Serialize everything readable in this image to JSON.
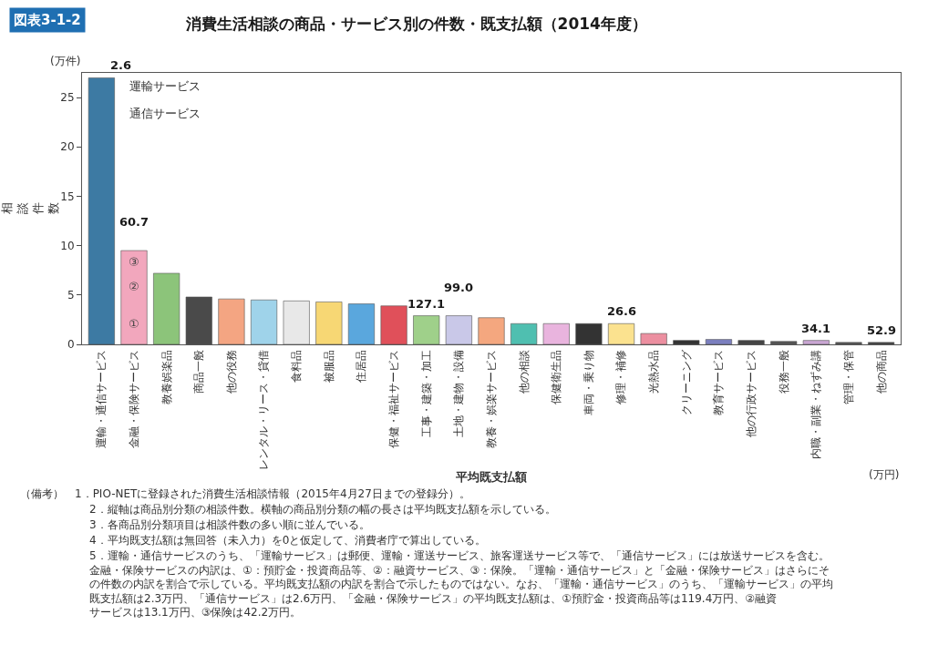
{
  "chart_data": {
    "type": "bar",
    "subtitle": "図表3-1-2",
    "title": "消費生活相談の商品・サービス別の件数・既支払額（2014年度）",
    "ylabel": "相談件数",
    "xlabel": "平均既支払額",
    "categories": [
      "運輸・通信サービス",
      "金融・保険サービス",
      "教養娯楽品",
      "商品一般",
      "他の役務",
      "レンタル・リース・貸借",
      "食料品",
      "被服品",
      "住居品",
      "保健・福祉サービス",
      "工事・建築・加工",
      "土地・建物・設備",
      "教養・娯楽サービス",
      "他の相談",
      "保健衛生品",
      "車両・乗り物",
      "修理・補修",
      "光熱水品",
      "クリーニング",
      "教育サービス",
      "他の行政サービス",
      "役務一般",
      "内職・副業・ねずみ講",
      "管理・保管",
      "他の商品"
    ],
    "values": [
      27.0,
      9.5,
      7.2,
      4.8,
      4.6,
      4.5,
      4.4,
      4.3,
      4.1,
      3.9,
      2.9,
      2.9,
      2.7,
      2.1,
      2.1,
      2.1,
      2.1,
      1.1,
      0.4,
      0.5,
      0.4,
      0.3,
      0.4,
      0.2,
      0.2
    ],
    "colors": [
      "#3d7aa3",
      "#f2a7bd",
      "#8cc47a",
      "#4a4a4a",
      "#f4a582",
      "#9fd3ea",
      "#e8e8e8",
      "#f7d774",
      "#5aa7dd",
      "#e0505a",
      "#9fd08a",
      "#c9c8e8",
      "#f4a77f",
      "#4fbfb0",
      "#e9b4de",
      "#333333",
      "#fbe28f",
      "#ec8fa0",
      "#333333",
      "#7b7fbf",
      "#444444",
      "#555555",
      "#c9a6d3",
      "#555555",
      "#444444"
    ],
    "ylim": [
      0,
      27.5
    ],
    "yticks": [
      0,
      5,
      10,
      15,
      20,
      25
    ],
    "annotations": [
      "(万件)",
      "(万円)",
      {
        "text": "2.6",
        "x": "運輸・通信サービス",
        "y": 27.0
      },
      {
        "text": "60.7",
        "x": "金融・保険サービス",
        "y": 9.5
      },
      {
        "text": "127.1",
        "x": "工事・建築・加工",
        "y": 2.9
      },
      {
        "text": "99.0",
        "x": "土地・建物・設備",
        "y": 2.9
      },
      {
        "text": "26.6",
        "x": "修理・補修",
        "y": 2.1
      },
      {
        "text": "34.1",
        "x": "内職・副業・ねずみ講",
        "y": 0.4
      },
      {
        "text": "52.9",
        "x": "他の商品",
        "y": 0.2
      },
      "運輸サービス",
      "通信サービス",
      "①",
      "②",
      "③",
      "（備考）　1．PIO-NETに登録された消費生活相談情報（2015年4月27日までの登録分）。",
      "2．縦軸は商品別分類の相談件数。横軸の商品別分類の幅の長さは平均既支払額を示している。",
      "3．各商品別分類項目は相談件数の多い順に並んでいる。",
      "4．平均既支払額は無回答（未入力）を0と仮定して、消費者庁で算出している。",
      "5．運輸・通信サービスのうち、「運輸サービス」は郵便、運輸・運送サービス、旅客運送サービス等で、「通信サービス」には放送サービスを含む。金融・保険サービスの内訳は、①：預貯金・投資商品等、②：融資サービス、③：保険。「運輸・通信サービス」と「金融・保険サービス」はさらにその件数の内訳を割合で示している。平均既支払額の内訳を割合で示したものではない。なお、「運輸・通信サービス」のうち、「運輸サービス」の平均既支払額は2.3万円、「通信サービス」は2.6万円、「金融・保険サービス」の平均既支払額は、①預貯金・投資商品等は119.4万円、②融資サービスは13.1万円、③保険は42.2万円。"
    ]
  }
}
